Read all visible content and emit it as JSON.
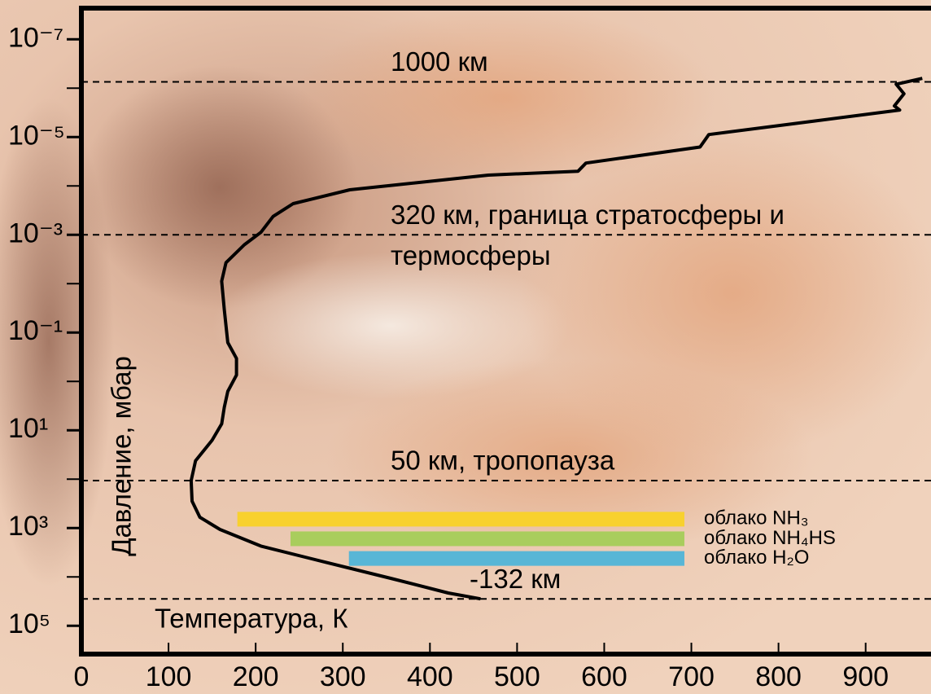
{
  "chart_data": {
    "type": "line",
    "xlabel": "Температура, К",
    "ylabel": "Давление, мбар",
    "xlim": [
      0,
      975
    ],
    "xticks": [
      0,
      100,
      200,
      300,
      400,
      500,
      600,
      700,
      800,
      900
    ],
    "ylim": [
      2.3e-08,
      380000
    ],
    "ylog": true,
    "yinverted": true,
    "yticks": [
      {
        "value": 1e-07,
        "label": "10⁻⁷"
      },
      {
        "value": 1e-05,
        "label": "10⁻⁵"
      },
      {
        "value": 0.001,
        "label": "10⁻³"
      },
      {
        "value": 0.1,
        "label": "10⁻¹"
      },
      {
        "value": 10,
        "label": "10¹"
      },
      {
        "value": 1000,
        "label": "10³"
      },
      {
        "value": 100000,
        "label": "10⁵"
      }
    ],
    "yminor_ticks": [
      1e-06,
      0.0001,
      0.01,
      1,
      100,
      10000
    ],
    "series": [
      {
        "color": "#000000",
        "x": [
          965,
          935,
          944,
          933,
          939,
          841,
          720,
          710,
          579,
          570,
          467,
          308,
          243,
          220,
          206,
          187,
          166,
          161,
          164,
          168,
          178,
          178,
          168,
          164,
          161,
          150,
          131,
          126,
          127,
          136,
          159,
          206,
          280,
          355,
          421,
          458
        ],
        "values": [
          6.3e-07,
          8.3e-07,
          1.3e-06,
          2.3e-06,
          2.8e-06,
          4.7e-06,
          8.9e-06,
          1.6e-05,
          3.4e-05,
          5e-05,
          6e-05,
          0.00012,
          0.00023,
          0.00042,
          0.00089,
          0.0016,
          0.0037,
          0.0089,
          0.034,
          0.16,
          0.34,
          0.74,
          1.6,
          3.4,
          7.4,
          16,
          42,
          107,
          282,
          603,
          1070,
          2340,
          5010,
          10700,
          21400,
          28200
        ]
      }
    ],
    "annotations": [
      {
        "text": [
          "1000 км"
        ],
        "y": 7.4e-07
      },
      {
        "text": [
          "320 км, граница стратосферы и",
          "термосферы"
        ],
        "y": 0.001
      },
      {
        "text": [
          "50 км, тропопауза"
        ],
        "y": 107
      },
      {
        "text": [
          "-132 км"
        ],
        "y": 28200
      }
    ],
    "clouds": [
      {
        "name": "облако NH₃",
        "color": "#f8d12e",
        "x": [
          179,
          692
        ],
        "y": 660
      },
      {
        "name": "облако NH₄HS",
        "color": "#a9cd5d",
        "x": [
          240,
          692
        ],
        "y": 1660
      },
      {
        "name": "облако H₂O",
        "color": "#58b6d6",
        "x": [
          307,
          692
        ],
        "y": 4200
      }
    ]
  }
}
